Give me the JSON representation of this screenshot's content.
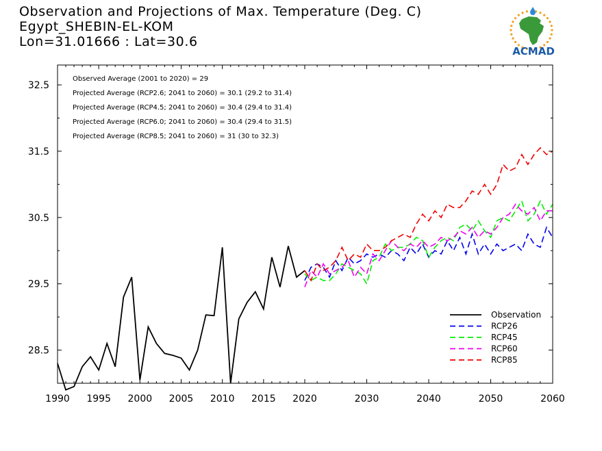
{
  "header": {
    "title": "Observation and Projections of Max. Temperature (Deg. C)",
    "location": "Egypt_SHEBIN-EL-KOM",
    "coords": "Lon=31.01666 : Lat=30.6"
  },
  "logo": {
    "text": "ACMAD",
    "colors": {
      "africa": "#3a9a3a",
      "sun": "#f0a020",
      "text": "#1a5aa8"
    }
  },
  "annotations": [
    "Observed Average (2001 to 2020) = 29",
    "Projected Average (RCP2.6; 2041 to 2060) = 30.1 (29.2 to 31.4)",
    "Projected Average (RCP4.5; 2041 to 2060) = 30.4 (29.4 to 31.4)",
    "Projected Average (RCP6.0; 2041 to 2060) = 30.4 (29.4 to 31.5)",
    "Projected Average (RCP8.5; 2041 to 2060) = 31 (30 to 32.3)"
  ],
  "chart_data": {
    "type": "line",
    "xlim": [
      1990,
      2060
    ],
    "ylim": [
      28.0,
      32.8
    ],
    "x_ticks_left": [
      1990,
      1995,
      2000,
      2005,
      2010,
      2015,
      2020
    ],
    "x_ticks_right": [
      2030,
      2040,
      2050,
      2060
    ],
    "y_ticks": [
      28.5,
      29.5,
      30.5,
      31.5,
      32.5
    ],
    "y_tick_labels": [
      "28.5",
      "29.5",
      "30.5",
      "31.5",
      "32.5"
    ],
    "legend_position": "bottom-right",
    "series": [
      {
        "name": "Observation",
        "color": "#000000",
        "dash": false,
        "x": [
          1990,
          1991,
          1992,
          1993,
          1994,
          1995,
          1996,
          1997,
          1998,
          1999,
          2000,
          2001,
          2002,
          2003,
          2004,
          2005,
          2006,
          2007,
          2008,
          2009,
          2010,
          2011,
          2012,
          2013,
          2014,
          2015,
          2016,
          2017,
          2018,
          2019,
          2020
        ],
        "y": [
          28.3,
          27.9,
          27.95,
          28.25,
          28.4,
          28.2,
          28.6,
          28.25,
          29.3,
          29.6,
          28.05,
          28.85,
          28.6,
          28.45,
          28.42,
          28.38,
          28.2,
          28.5,
          29.03,
          29.02,
          30.05,
          28.0,
          28.97,
          29.22,
          29.38,
          29.12,
          29.9,
          29.45,
          30.07,
          29.6,
          29.7
        ]
      },
      {
        "name": "RCP26",
        "color": "#0000ee",
        "dash": true,
        "x": [
          2020,
          2021,
          2022,
          2023,
          2024,
          2025,
          2026,
          2027,
          2028,
          2029,
          2030,
          2031,
          2032,
          2033,
          2034,
          2035,
          2036,
          2037,
          2038,
          2039,
          2040,
          2041,
          2042,
          2043,
          2044,
          2045,
          2046,
          2047,
          2048,
          2049,
          2050,
          2051,
          2052,
          2053,
          2054,
          2055,
          2056,
          2057,
          2058,
          2059,
          2060
        ],
        "y": [
          29.55,
          29.75,
          29.8,
          29.75,
          29.6,
          29.85,
          29.7,
          29.9,
          29.8,
          29.85,
          29.95,
          29.9,
          29.95,
          29.9,
          30.0,
          29.95,
          29.85,
          30.05,
          29.95,
          30.1,
          29.9,
          30.0,
          29.95,
          30.15,
          30.0,
          30.2,
          29.95,
          30.25,
          29.95,
          30.1,
          29.95,
          30.1,
          30.0,
          30.05,
          30.1,
          30.0,
          30.25,
          30.1,
          30.05,
          30.35,
          30.2
        ]
      },
      {
        "name": "RCP45",
        "color": "#00ee00",
        "dash": true,
        "x": [
          2020,
          2021,
          2022,
          2023,
          2024,
          2025,
          2026,
          2027,
          2028,
          2029,
          2030,
          2031,
          2032,
          2033,
          2034,
          2035,
          2036,
          2037,
          2038,
          2039,
          2040,
          2041,
          2042,
          2043,
          2044,
          2045,
          2046,
          2047,
          2048,
          2049,
          2050,
          2051,
          2052,
          2053,
          2054,
          2055,
          2056,
          2057,
          2058,
          2059,
          2060
        ],
        "y": [
          29.65,
          29.55,
          29.6,
          29.55,
          29.55,
          29.65,
          29.8,
          29.75,
          29.7,
          29.65,
          29.5,
          29.85,
          29.9,
          30.1,
          30.0,
          30.05,
          30.05,
          30.1,
          30.2,
          30.15,
          29.9,
          30.05,
          30.15,
          30.2,
          30.15,
          30.35,
          30.4,
          30.3,
          30.45,
          30.3,
          30.2,
          30.45,
          30.5,
          30.45,
          30.6,
          30.75,
          30.45,
          30.55,
          30.75,
          30.55,
          30.7
        ]
      },
      {
        "name": "RCP60",
        "color": "#ee00ee",
        "dash": true,
        "x": [
          2020,
          2021,
          2022,
          2023,
          2024,
          2025,
          2026,
          2027,
          2028,
          2029,
          2030,
          2031,
          2032,
          2033,
          2034,
          2035,
          2036,
          2037,
          2038,
          2039,
          2040,
          2041,
          2042,
          2043,
          2044,
          2045,
          2046,
          2047,
          2048,
          2049,
          2050,
          2051,
          2052,
          2053,
          2054,
          2055,
          2056,
          2057,
          2058,
          2059,
          2060
        ],
        "y": [
          29.45,
          29.7,
          29.6,
          29.8,
          29.65,
          29.7,
          29.75,
          29.85,
          29.6,
          29.75,
          29.65,
          29.95,
          29.85,
          30.0,
          30.15,
          30.05,
          30.0,
          30.1,
          30.05,
          30.15,
          30.05,
          30.1,
          30.2,
          30.15,
          30.2,
          30.3,
          30.25,
          30.35,
          30.2,
          30.3,
          30.25,
          30.35,
          30.5,
          30.55,
          30.7,
          30.6,
          30.55,
          30.65,
          30.45,
          30.6,
          30.6
        ]
      },
      {
        "name": "RCP85",
        "color": "#ee0000",
        "dash": true,
        "x": [
          2020,
          2021,
          2022,
          2023,
          2024,
          2025,
          2026,
          2027,
          2028,
          2029,
          2030,
          2031,
          2032,
          2033,
          2034,
          2035,
          2036,
          2037,
          2038,
          2039,
          2040,
          2041,
          2042,
          2043,
          2044,
          2045,
          2046,
          2047,
          2048,
          2049,
          2050,
          2051,
          2052,
          2053,
          2054,
          2055,
          2056,
          2057,
          2058,
          2059,
          2060
        ],
        "y": [
          29.7,
          29.55,
          29.8,
          29.7,
          29.75,
          29.85,
          30.05,
          29.85,
          29.95,
          29.9,
          30.1,
          30.0,
          30.0,
          30.05,
          30.15,
          30.2,
          30.25,
          30.2,
          30.4,
          30.55,
          30.45,
          30.6,
          30.5,
          30.7,
          30.65,
          30.65,
          30.75,
          30.9,
          30.85,
          31.0,
          30.85,
          31.0,
          31.3,
          31.2,
          31.25,
          31.45,
          31.3,
          31.45,
          31.55,
          31.45,
          31.5
        ]
      }
    ]
  }
}
